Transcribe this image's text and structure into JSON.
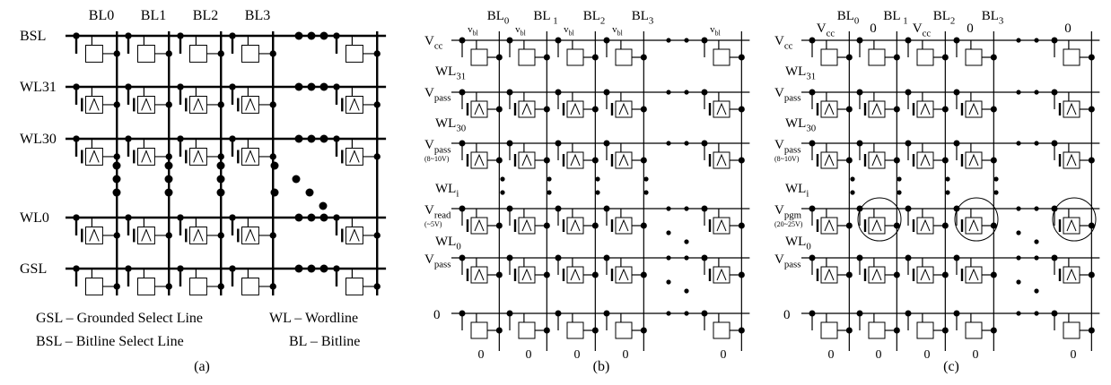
{
  "panel_a": {
    "columns": [
      "BL0",
      "BL1",
      "BL2",
      "BL3"
    ],
    "rows": [
      "BSL",
      "WL31",
      "WL30",
      "WL0",
      "GSL"
    ],
    "legend": [
      "GSL – Grounded Select Line",
      "WL – Wordline",
      "BSL – Bitline Select Line",
      "BL – Bitline"
    ],
    "caption": "(a)"
  },
  "panel_b": {
    "columns": [
      [
        "BL",
        "0"
      ],
      [
        "BL",
        " 1"
      ],
      [
        "BL",
        "2"
      ],
      [
        "BL",
        "3"
      ]
    ],
    "top_voltages": [
      [
        "v",
        "bl"
      ],
      [
        "v",
        "bl"
      ],
      [
        "v",
        "bl"
      ],
      [
        "v",
        "bl"
      ],
      [
        "v",
        "bl"
      ]
    ],
    "row_labels": [
      [
        "V",
        "cc"
      ],
      [
        "V",
        "pass"
      ],
      [
        "V",
        "pass"
      ],
      [
        "V",
        "read"
      ],
      [
        "V",
        "pass"
      ],
      "0"
    ],
    "wordline_labels": [
      [
        "WL",
        "31"
      ],
      [
        "WL",
        "30"
      ],
      [
        "WL",
        "i"
      ],
      [
        "WL",
        "0"
      ]
    ],
    "notes": [
      "(8~10V)",
      "(~5V)"
    ],
    "bottom_voltages": [
      "0",
      "0",
      "0",
      "0",
      "0"
    ],
    "caption": "(b)"
  },
  "panel_c": {
    "columns": [
      [
        "BL",
        "0"
      ],
      [
        "BL",
        " 1"
      ],
      [
        "BL",
        "2"
      ],
      [
        "BL",
        "3"
      ]
    ],
    "top_voltages": [
      [
        "V",
        "cc"
      ],
      "0",
      [
        "V",
        "cc"
      ],
      "0",
      "0"
    ],
    "row_labels": [
      [
        "V",
        "cc"
      ],
      [
        "V",
        "pass"
      ],
      [
        "V",
        "pass"
      ],
      [
        "V",
        "pgm"
      ],
      [
        "V",
        "pass"
      ],
      "0"
    ],
    "wordline_labels": [
      [
        "WL",
        "31"
      ],
      [
        "WL",
        "30"
      ],
      [
        "WL",
        "i"
      ],
      [
        "WL",
        "0"
      ]
    ],
    "notes": [
      "(8~10V)",
      "(20~25V)"
    ],
    "bottom_voltages": [
      "0",
      "0",
      "0",
      "0",
      "0"
    ],
    "caption": "(c)"
  }
}
